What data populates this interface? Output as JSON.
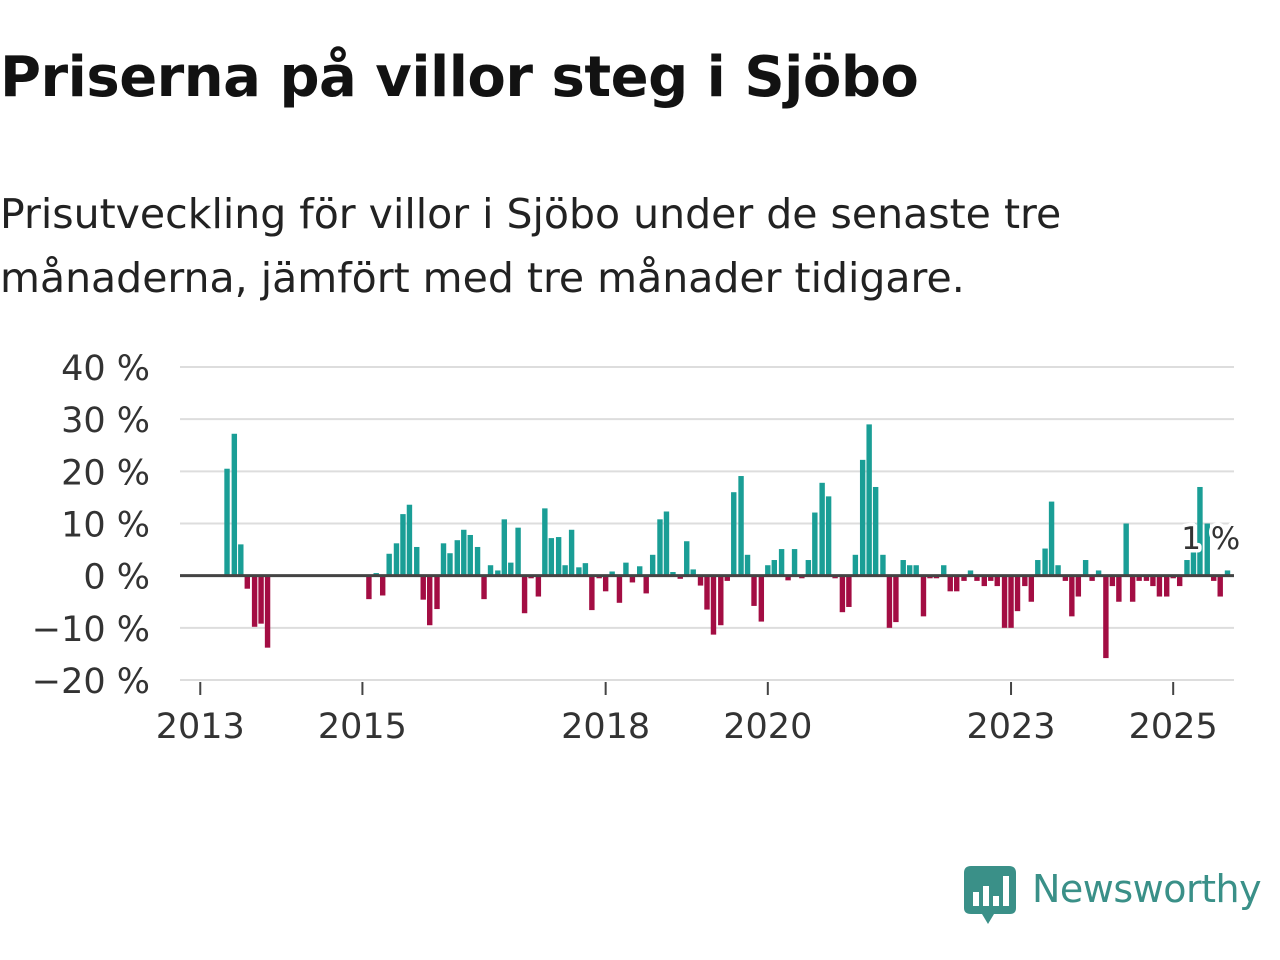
{
  "header": {
    "title": "Priserna på villor steg i Sjöbo",
    "subtitle": "Prisutveckling för villor i Sjöbo under de senaste tre månaderna, jämfört med tre månader tidigare."
  },
  "brand": {
    "name": "Newsworthy",
    "color": "#3a9088",
    "logo_icon": "newsworthy-bar-chart-icon"
  },
  "colors": {
    "positive": "#1a9e96",
    "negative": "#a30d43",
    "grid": "#dddddd",
    "zero_line": "#444444"
  },
  "chart_data": {
    "type": "bar",
    "title": "Priserna på villor steg i Sjöbo",
    "xlabel": "",
    "ylabel": "",
    "unit": "%",
    "ylim": [
      -20,
      40
    ],
    "yticks": [
      -20,
      -10,
      0,
      10,
      20,
      30,
      40
    ],
    "ytick_labels": [
      "−20 %",
      "−10 %",
      "0 %",
      "10 %",
      "20 %",
      "30 %",
      "40 %"
    ],
    "xlim": [
      2012.75,
      2025.75
    ],
    "xticks": [
      2013,
      2015,
      2018,
      2020,
      2023,
      2025
    ],
    "xtick_labels": [
      "2013",
      "2015",
      "2018",
      "2020",
      "2023",
      "2025"
    ],
    "bar_width_years": 0.0667,
    "annotation": {
      "label": "1 %",
      "x": 2025.71,
      "value": 1
    },
    "series": [
      {
        "name": "Prisutveckling",
        "x": [
          2013.33,
          2013.42,
          2013.5,
          2013.58,
          2013.67,
          2013.75,
          2013.83,
          2015.08,
          2015.17,
          2015.25,
          2015.33,
          2015.42,
          2015.5,
          2015.58,
          2015.67,
          2015.75,
          2015.83,
          2015.92,
          2016.0,
          2016.08,
          2016.17,
          2016.25,
          2016.33,
          2016.42,
          2016.5,
          2016.58,
          2016.67,
          2016.75,
          2016.83,
          2016.92,
          2017.0,
          2017.08,
          2017.17,
          2017.25,
          2017.33,
          2017.42,
          2017.5,
          2017.58,
          2017.67,
          2017.75,
          2017.83,
          2017.92,
          2018.0,
          2018.08,
          2018.17,
          2018.25,
          2018.33,
          2018.42,
          2018.5,
          2018.58,
          2018.67,
          2018.75,
          2018.83,
          2018.92,
          2019.0,
          2019.08,
          2019.17,
          2019.25,
          2019.33,
          2019.42,
          2019.5,
          2019.58,
          2019.67,
          2019.75,
          2019.83,
          2019.92,
          2020.0,
          2020.08,
          2020.17,
          2020.25,
          2020.33,
          2020.42,
          2020.5,
          2020.58,
          2020.67,
          2020.75,
          2020.83,
          2020.92,
          2021.0,
          2021.08,
          2021.17,
          2021.25,
          2021.33,
          2021.42,
          2021.5,
          2021.58,
          2021.67,
          2021.75,
          2021.83,
          2021.92,
          2022.0,
          2022.08,
          2022.17,
          2022.25,
          2022.33,
          2022.42,
          2022.5,
          2022.58,
          2022.67,
          2022.75,
          2022.83,
          2022.92,
          2023.0,
          2023.08,
          2023.17,
          2023.25,
          2023.33,
          2023.42,
          2023.5,
          2023.58,
          2023.67,
          2023.75,
          2023.83,
          2023.92,
          2024.0,
          2024.08,
          2024.17,
          2024.25,
          2024.33,
          2024.42,
          2024.5,
          2024.58,
          2024.67,
          2024.75,
          2024.83,
          2024.92,
          2025.0,
          2025.08,
          2025.17,
          2025.25,
          2025.33,
          2025.42,
          2025.5,
          2025.58,
          2025.67
        ],
        "values": [
          20.5,
          27.2,
          6.0,
          -2.5,
          -9.8,
          -9.2,
          -13.8,
          -4.5,
          0.5,
          -3.8,
          4.2,
          6.2,
          11.8,
          13.6,
          5.5,
          -4.6,
          -9.5,
          -6.4,
          6.2,
          4.3,
          6.8,
          8.8,
          7.8,
          5.5,
          -4.5,
          2.0,
          1.0,
          10.8,
          2.5,
          9.2,
          -7.2,
          -0.5,
          -4.0,
          12.9,
          7.2,
          7.4,
          2.0,
          8.8,
          1.6,
          2.4,
          -6.6,
          -0.5,
          -3.0,
          0.8,
          -5.2,
          2.5,
          -1.3,
          1.8,
          -3.4,
          4.0,
          10.8,
          12.3,
          0.7,
          -0.6,
          6.6,
          1.2,
          -1.9,
          -6.5,
          -11.3,
          -9.5,
          -1.0,
          16.0,
          19.1,
          4.0,
          -5.8,
          -8.8,
          2.0,
          3.0,
          5.1,
          -0.9,
          5.1,
          -0.5,
          3.0,
          12.1,
          17.8,
          15.2,
          -0.5,
          -7.0,
          -6.0,
          4.0,
          22.2,
          29.0,
          17.0,
          4.0,
          -10.0,
          -8.9,
          3.0,
          2.0,
          2.0,
          -7.8,
          -0.5,
          -0.5,
          2.0,
          -3.0,
          -3.0,
          -1.0,
          1.0,
          -1.0,
          -2.0,
          -1.0,
          -2.0,
          -10.0,
          -10.0,
          -6.8,
          -2.0,
          -5.0,
          3.0,
          5.2,
          14.2,
          2.0,
          -1.0,
          -7.8,
          -4.0,
          3.0,
          -1.0,
          1.0,
          -15.8,
          -2.0,
          -5.0,
          10.0,
          -5.0,
          -1.0,
          -1.0,
          -2.0,
          -4.0,
          -4.0,
          -0.5,
          -2.0,
          3.0,
          10.0,
          17.0,
          10.0,
          -1.0,
          -4.0,
          1.0
        ]
      }
    ]
  }
}
